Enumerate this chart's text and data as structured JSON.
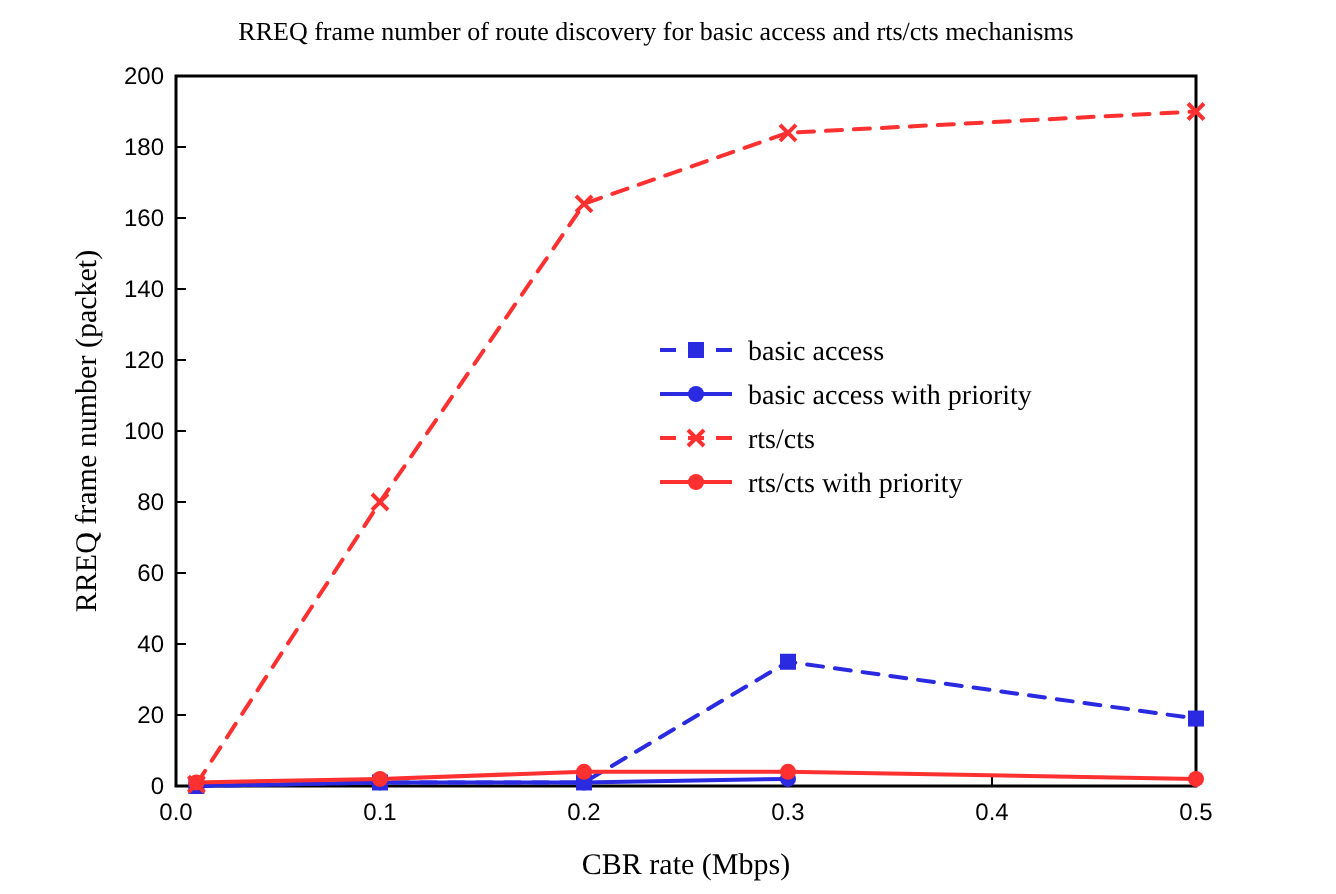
{
  "chart_data": {
    "type": "line",
    "title": "RREQ frame number of route discovery for basic access and rts/cts mechanisms",
    "xlabel": "CBR rate (Mbps)",
    "ylabel": "RREQ frame number (packet)",
    "x": [
      0.01,
      0.1,
      0.2,
      0.3,
      0.5
    ],
    "series": [
      {
        "name": "basic access",
        "color": "#2a2ae0",
        "values": [
          0,
          1,
          1,
          35,
          19
        ],
        "line_style": "dashed",
        "marker": "square"
      },
      {
        "name": "basic access with priority",
        "color": "#2a2ae0",
        "values": [
          0,
          1,
          1,
          2,
          null
        ],
        "line_style": "solid",
        "marker": "circle"
      },
      {
        "name": "rts/cts",
        "color": "#ff3030",
        "values": [
          0.5,
          80,
          164,
          184,
          190
        ],
        "line_style": "dashed",
        "marker": "cross"
      },
      {
        "name": "rts/cts with priority",
        "color": "#ff3030",
        "values": [
          1,
          2,
          4,
          4,
          2
        ],
        "line_style": "solid",
        "marker": "circle"
      }
    ],
    "xlim": [
      0,
      0.5
    ],
    "ylim": [
      0,
      200
    ],
    "xticks": [
      {
        "value": 0,
        "label": "0.0"
      },
      {
        "value": 0.1,
        "label": "0.1"
      },
      {
        "value": 0.2,
        "label": "0.2"
      },
      {
        "value": 0.3,
        "label": "0.3"
      },
      {
        "value": 0.4,
        "label": "0.4"
      },
      {
        "value": 0.5,
        "label": "0.5"
      }
    ],
    "yticks": [
      0,
      20,
      40,
      60,
      80,
      100,
      120,
      140,
      160,
      180,
      200
    ],
    "legend": "right",
    "grid": false
  }
}
